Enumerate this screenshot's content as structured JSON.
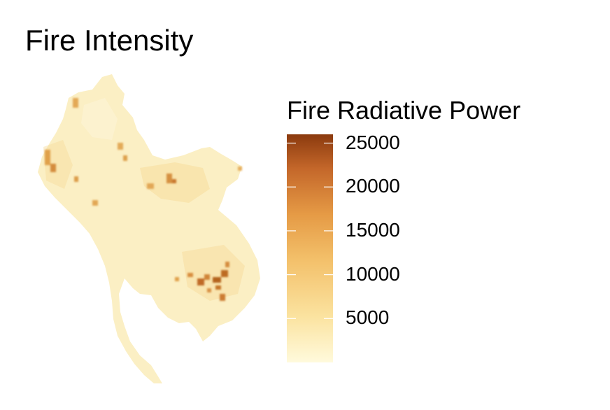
{
  "title": "Fire Intensity",
  "legend": {
    "title": "Fire Radiative Power",
    "min": 0,
    "max": 26000,
    "ticks": [
      "25000",
      "20000",
      "15000",
      "10000",
      "5000"
    ],
    "tick_values": [
      25000,
      20000,
      15000,
      10000,
      5000
    ],
    "color_low": "#fffadc",
    "color_mid": "#f2b45a",
    "color_high": "#8b3a0e"
  },
  "map": {
    "hotspot_color": "#b4641e"
  }
}
